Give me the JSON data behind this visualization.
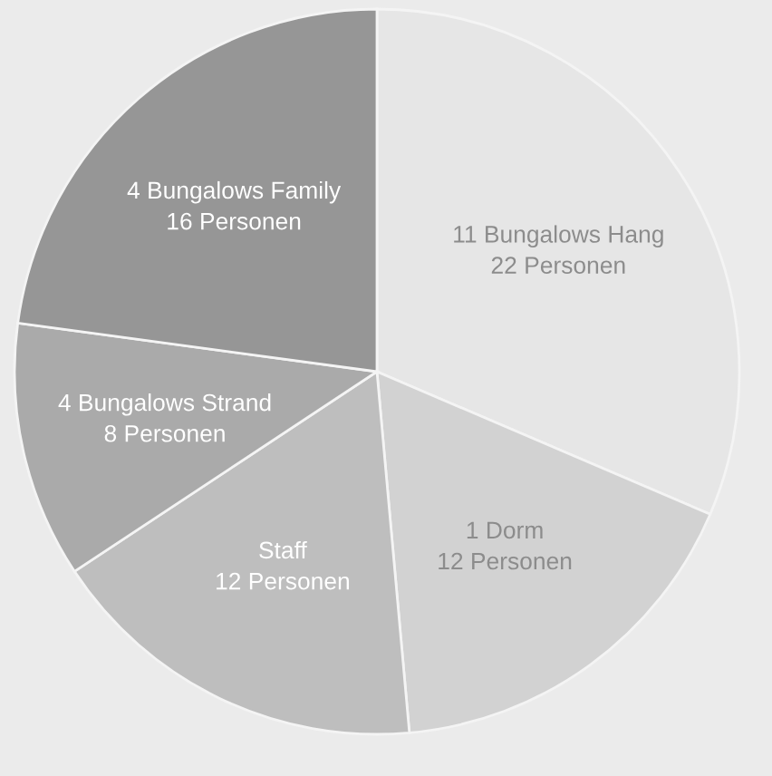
{
  "chart_data": {
    "type": "pie",
    "categories": [
      "11 Bungalows Hang",
      "1 Dorm",
      "Staff",
      "4 Bungalows Strand",
      "4 Bungalows Family"
    ],
    "values": [
      22,
      12,
      12,
      8,
      16
    ],
    "value_labels": [
      "22 Personen",
      "12 Personen",
      "12 Personen",
      "8 Personen",
      "16 Personen"
    ],
    "colors": [
      "#e6e6e6",
      "#d2d2d2",
      "#bebebe",
      "#aaaaaa",
      "#969696"
    ],
    "legend": false
  }
}
